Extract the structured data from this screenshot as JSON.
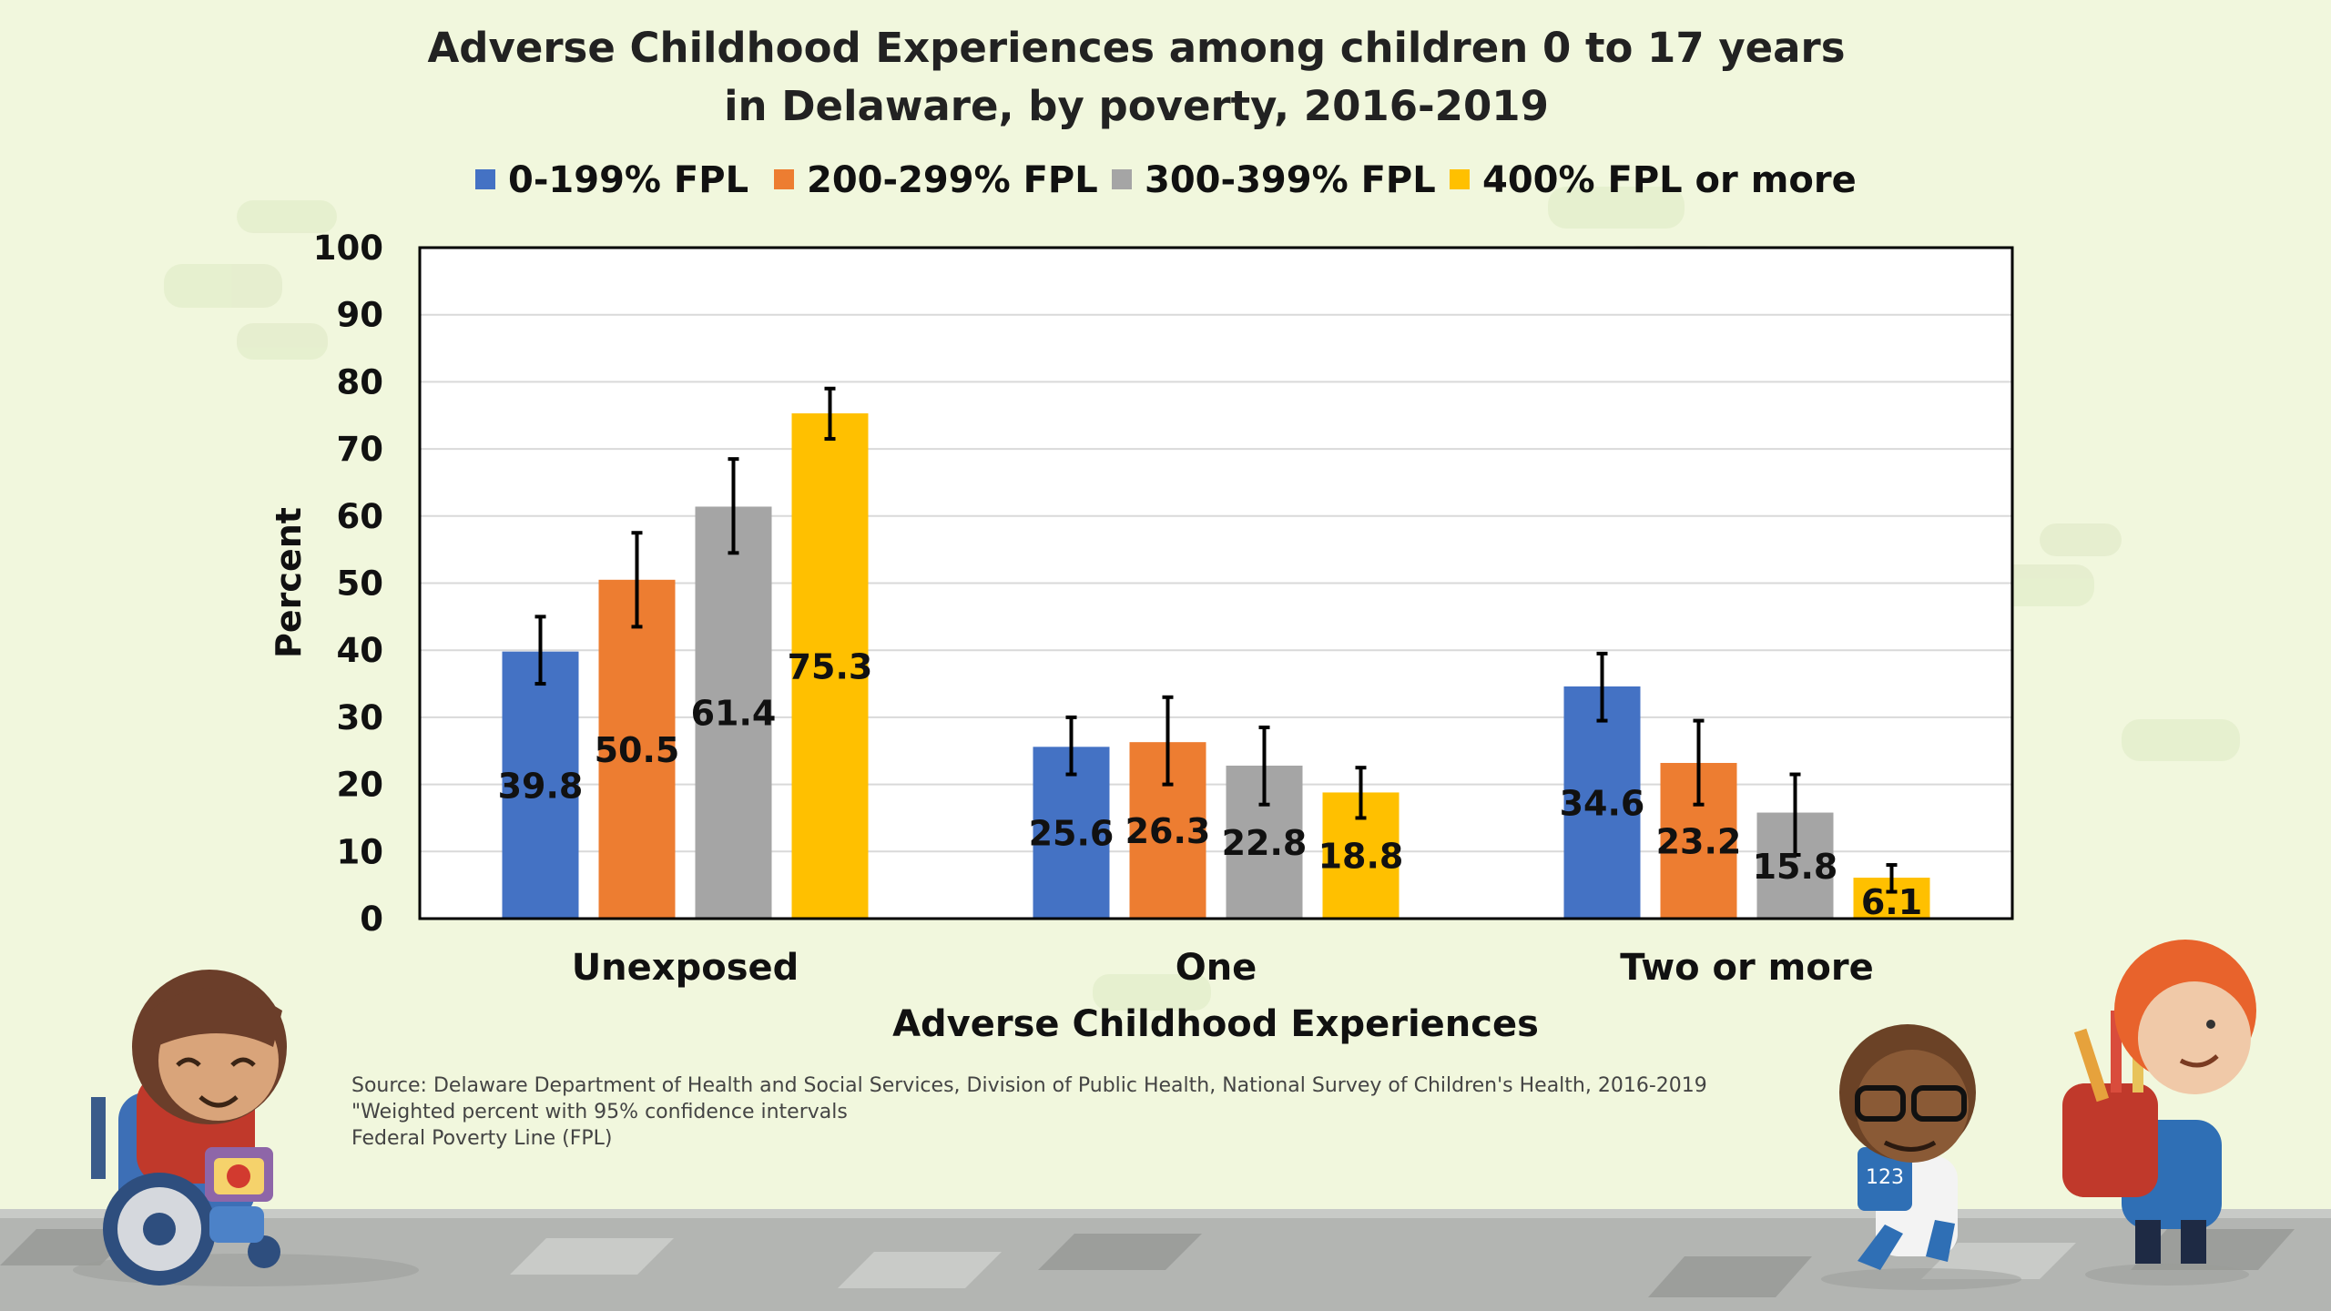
{
  "chart_data": {
    "type": "bar",
    "title_lines": [
      "Adverse Childhood Experiences among children 0 to 17 years",
      "in Delaware, by poverty, 2016-2019"
    ],
    "xlabel": "Adverse Childhood Experiences",
    "ylabel": "Percent",
    "ylim": [
      0,
      100
    ],
    "yticks": [
      0,
      10,
      20,
      30,
      40,
      50,
      60,
      70,
      80,
      90,
      100
    ],
    "categories": [
      "Unexposed",
      "One",
      "Two or more"
    ],
    "legend_position": "top",
    "grid": true,
    "series": [
      {
        "name": "0-199% FPL",
        "color": "#4472c4",
        "values": [
          39.8,
          25.6,
          34.6
        ],
        "err_low": [
          35.0,
          21.5,
          29.5
        ],
        "err_high": [
          45.0,
          30.0,
          39.5
        ]
      },
      {
        "name": "200-299% FPL",
        "color": "#ed7d31",
        "values": [
          50.5,
          26.3,
          23.2
        ],
        "err_low": [
          43.5,
          20.0,
          17.0
        ],
        "err_high": [
          57.5,
          33.0,
          29.5
        ]
      },
      {
        "name": "300-399% FPL",
        "color": "#a5a5a5",
        "values": [
          61.4,
          22.8,
          15.8
        ],
        "err_low": [
          54.5,
          17.0,
          9.5
        ],
        "err_high": [
          68.5,
          28.5,
          21.5
        ]
      },
      {
        "name": "400% FPL or more",
        "color": "#ffc000",
        "values": [
          75.3,
          18.8,
          6.1
        ],
        "err_low": [
          71.5,
          15.0,
          4.0
        ],
        "err_high": [
          79.0,
          22.5,
          8.0
        ]
      }
    ],
    "value_labels": [
      "39.8",
      "50.5",
      "61.4",
      "75.3",
      "25.6",
      "26.3",
      "22.8",
      "18.8",
      "34.6",
      "23.2",
      "15.8",
      "6.1"
    ]
  },
  "notes": {
    "source": "Source: Delaware Department of Health and Social Services, Division of Public Health, National Survey of Children's Health, 2016-2019",
    "weighted": "\"Weighted percent with 95% confidence intervals",
    "fpl": "Federal Poverty Line (FPL)"
  },
  "colors": {
    "background": "#f1f7dd",
    "ground": "#b3b5b2",
    "axis": "#000000",
    "grid": "#d9d9d9"
  }
}
